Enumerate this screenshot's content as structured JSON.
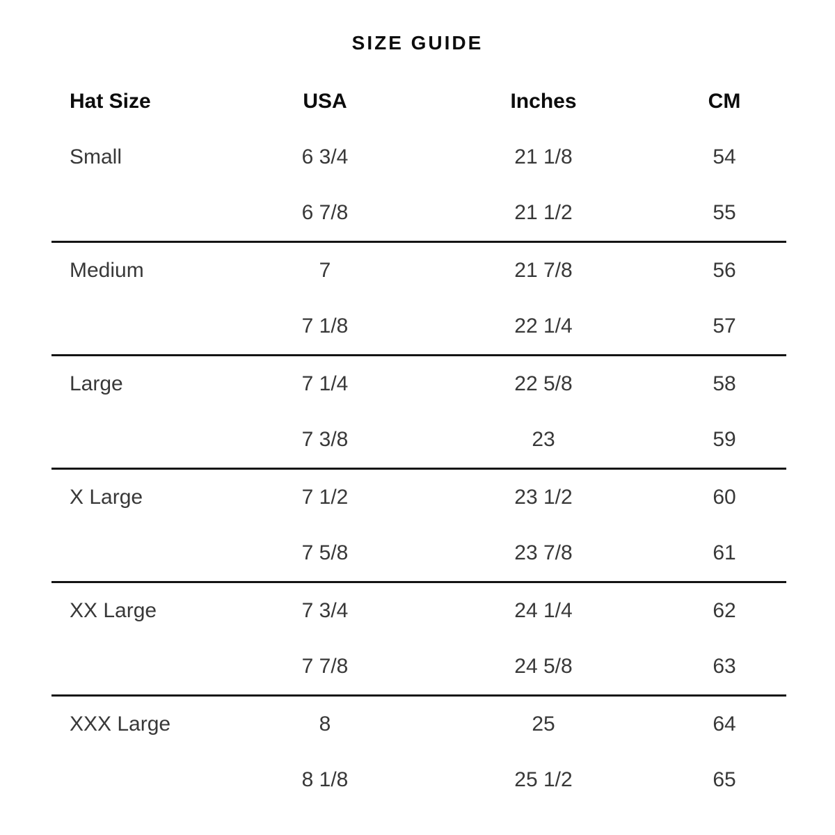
{
  "title": "SIZE GUIDE",
  "columns": {
    "size": "Hat Size",
    "usa": "USA",
    "inches": "Inches",
    "cm": "CM"
  },
  "rows": [
    {
      "size": "Small",
      "usa": "6 3/4",
      "inches": "21 1/8",
      "cm": "54"
    },
    {
      "size": "",
      "usa": "6 7/8",
      "inches": "21 1/2",
      "cm": "55"
    },
    {
      "size": "Medium",
      "usa": "7",
      "inches": "21 7/8",
      "cm": "56"
    },
    {
      "size": "",
      "usa": "7 1/8",
      "inches": "22 1/4",
      "cm": "57"
    },
    {
      "size": "Large",
      "usa": "7 1/4",
      "inches": "22 5/8",
      "cm": "58"
    },
    {
      "size": "",
      "usa": "7 3/8",
      "inches": "23",
      "cm": "59"
    },
    {
      "size": "X Large",
      "usa": "7 1/2",
      "inches": "23 1/2",
      "cm": "60"
    },
    {
      "size": "",
      "usa": "7 5/8",
      "inches": "23 7/8",
      "cm": "61"
    },
    {
      "size": "XX Large",
      "usa": "7 3/4",
      "inches": "24 1/4",
      "cm": "62"
    },
    {
      "size": "",
      "usa": "7 7/8",
      "inches": "24 5/8",
      "cm": "63"
    },
    {
      "size": "XXX Large",
      "usa": "8",
      "inches": "25",
      "cm": "64"
    },
    {
      "size": "",
      "usa": "8 1/8",
      "inches": "25 1/2",
      "cm": "65"
    }
  ],
  "colors": {
    "background": "#ffffff",
    "heading_text": "#0c0c0c",
    "body_text": "#383838",
    "divider": "#141414"
  }
}
